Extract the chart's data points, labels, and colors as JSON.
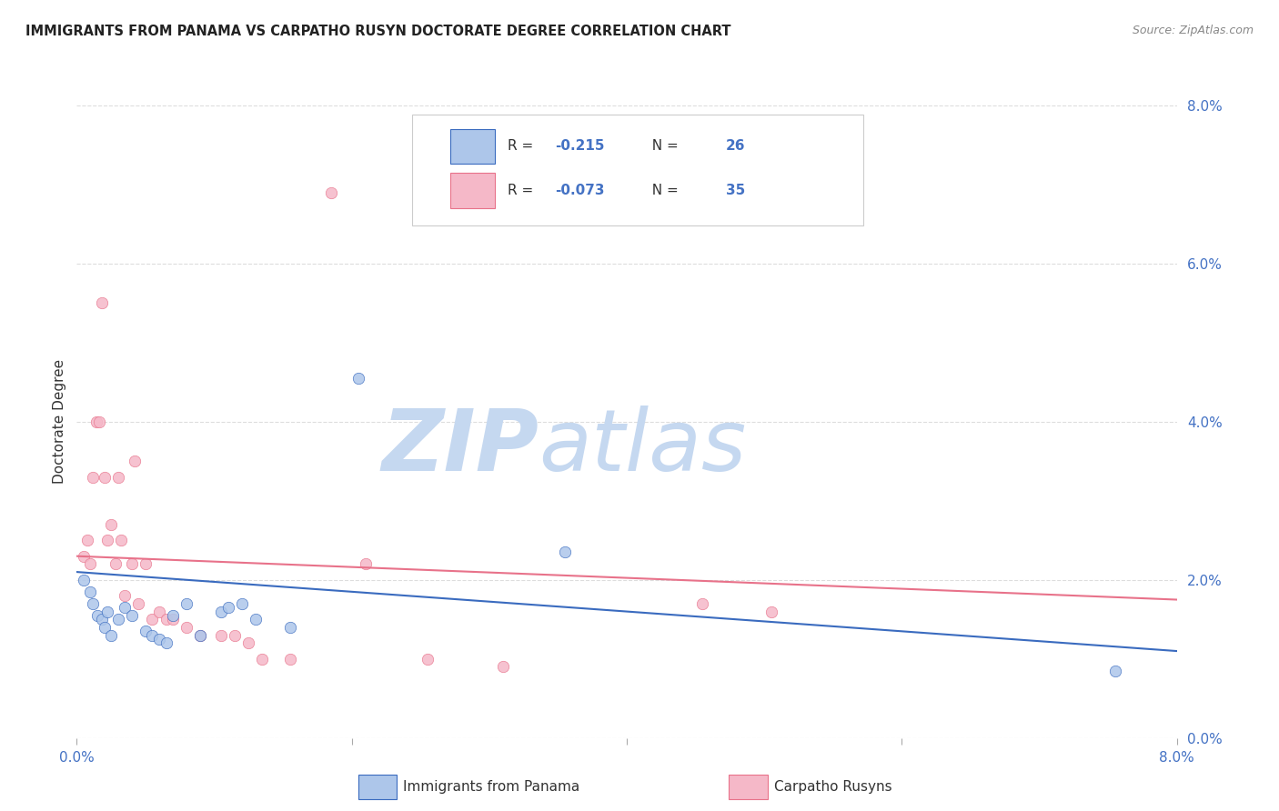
{
  "title": "IMMIGRANTS FROM PANAMA VS CARPATHO RUSYN DOCTORATE DEGREE CORRELATION CHART",
  "source": "Source: ZipAtlas.com",
  "ylabel": "Doctorate Degree",
  "xlim": [
    0.0,
    8.0
  ],
  "ylim": [
    0.0,
    8.0
  ],
  "legend1_r": "-0.215",
  "legend1_n": "26",
  "legend2_r": "-0.073",
  "legend2_n": "35",
  "series1_label": "Immigrants from Panama",
  "series2_label": "Carpatho Rusyns",
  "color_blue": "#adc6ea",
  "color_pink": "#f5b8c8",
  "line_blue": "#3a6bbf",
  "line_pink": "#e8728a",
  "panama_x": [
    0.05,
    0.1,
    0.12,
    0.15,
    0.18,
    0.2,
    0.22,
    0.25,
    0.3,
    0.35,
    0.4,
    0.5,
    0.55,
    0.6,
    0.65,
    0.7,
    0.8,
    0.9,
    1.05,
    1.1,
    1.2,
    1.3,
    1.55,
    2.05,
    3.55,
    7.55
  ],
  "panama_y": [
    2.0,
    1.85,
    1.7,
    1.55,
    1.5,
    1.4,
    1.6,
    1.3,
    1.5,
    1.65,
    1.55,
    1.35,
    1.3,
    1.25,
    1.2,
    1.55,
    1.7,
    1.3,
    1.6,
    1.65,
    1.7,
    1.5,
    1.4,
    4.55,
    2.35,
    0.85
  ],
  "rusyn_x": [
    0.05,
    0.08,
    0.1,
    0.12,
    0.14,
    0.16,
    0.18,
    0.2,
    0.22,
    0.25,
    0.28,
    0.3,
    0.32,
    0.35,
    0.4,
    0.42,
    0.45,
    0.5,
    0.55,
    0.6,
    0.65,
    0.7,
    0.8,
    0.9,
    1.05,
    1.15,
    1.25,
    1.35,
    1.55,
    1.85,
    2.1,
    2.55,
    3.1,
    4.55,
    5.05
  ],
  "rusyn_y": [
    2.3,
    2.5,
    2.2,
    3.3,
    4.0,
    4.0,
    5.5,
    3.3,
    2.5,
    2.7,
    2.2,
    3.3,
    2.5,
    1.8,
    2.2,
    3.5,
    1.7,
    2.2,
    1.5,
    1.6,
    1.5,
    1.5,
    1.4,
    1.3,
    1.3,
    1.3,
    1.2,
    1.0,
    1.0,
    6.9,
    2.2,
    1.0,
    0.9,
    1.7,
    1.6
  ],
  "blue_line_y0": 2.1,
  "blue_line_y1": 1.1,
  "pink_line_y0": 2.3,
  "pink_line_y1": 1.75,
  "marker_size": 80,
  "background_color": "#ffffff",
  "grid_color": "#dddddd",
  "title_color": "#222222",
  "axis_label_color": "#333333",
  "tick_color": "#4472c4",
  "watermark_zip_color": "#c5d8f0",
  "watermark_atlas_color": "#c5d8f0",
  "watermark_fontsize": 68,
  "grid_ticks": [
    0.0,
    2.0,
    4.0,
    6.0,
    8.0
  ]
}
